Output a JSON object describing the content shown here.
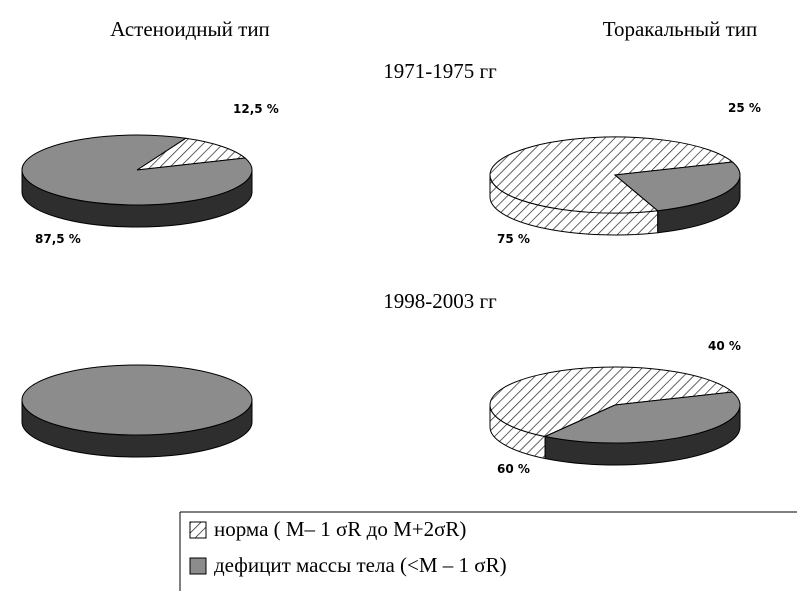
{
  "columns": [
    "Астеноидный тип",
    "Торакальный тип"
  ],
  "periods": [
    "1971-1975 гг",
    "1998-2003 гг"
  ],
  "legend": [
    {
      "name": "норма     ( M– 1 σR до M+2σR)",
      "pattern": "hatch"
    },
    {
      "name": "дефицит массы тела (<M – 1 σR)",
      "color": "#8c8c8c"
    }
  ],
  "chart_data": [
    {
      "type": "pie",
      "values": [
        12.5,
        87.5
      ],
      "value_labels": [
        "12,5 %",
        "87,5 %"
      ]
    },
    {
      "type": "pie",
      "values": [
        75,
        25
      ],
      "value_labels": [
        "75 %",
        "25 %"
      ]
    },
    {
      "type": "pie",
      "values": [
        0,
        100
      ]
    },
    {
      "type": "pie",
      "values": [
        60,
        40
      ],
      "value_labels": [
        "60 %",
        "40 %"
      ]
    }
  ]
}
